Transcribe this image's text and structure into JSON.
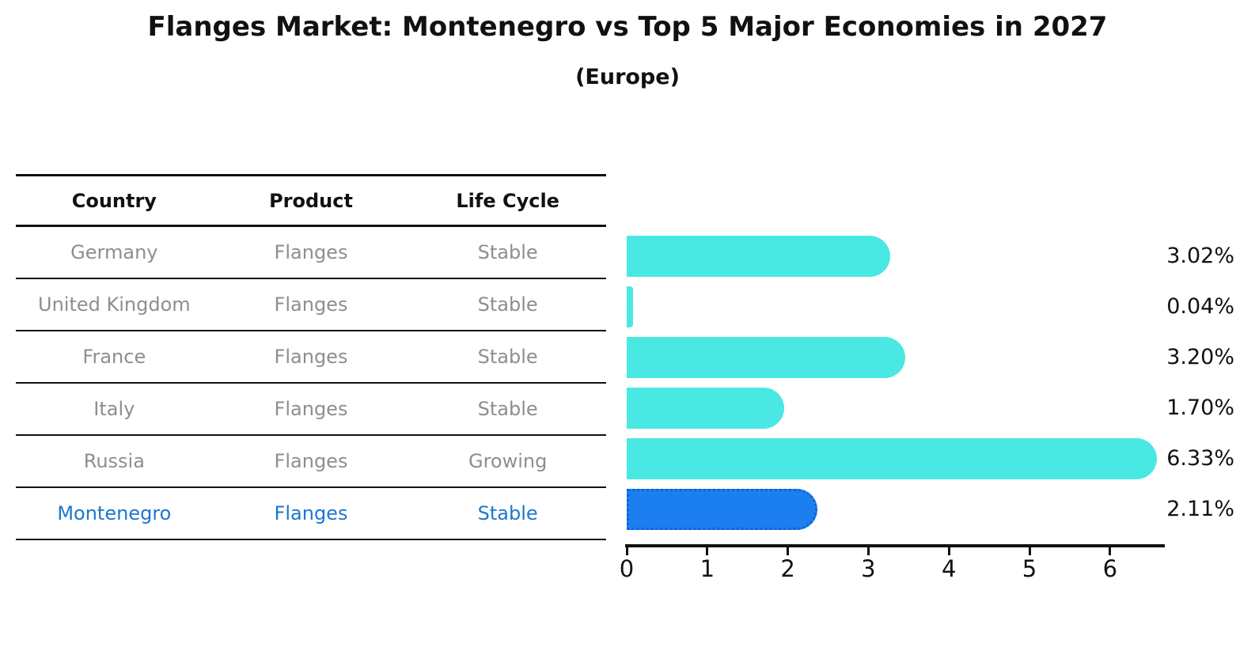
{
  "title": "Flanges Market: Montenegro vs Top 5 Major Economies in 2027",
  "subtitle": "(Europe)",
  "table": {
    "headers": [
      "Country",
      "Product",
      "Life Cycle"
    ],
    "rows": [
      {
        "country": "Germany",
        "product": "Flanges",
        "life_cycle": "Stable",
        "highlight": false
      },
      {
        "country": "United Kingdom",
        "product": "Flanges",
        "life_cycle": "Stable",
        "highlight": false
      },
      {
        "country": "France",
        "product": "Flanges",
        "life_cycle": "Stable",
        "highlight": false
      },
      {
        "country": "Italy",
        "product": "Flanges",
        "life_cycle": "Stable",
        "highlight": false
      },
      {
        "country": "Russia",
        "product": "Flanges",
        "life_cycle": "Growing",
        "highlight": false
      },
      {
        "country": "Montenegro",
        "product": "Flanges",
        "life_cycle": "Stable",
        "highlight": true
      }
    ]
  },
  "chart_data": {
    "type": "bar",
    "orientation": "horizontal",
    "title": "Flanges Market: Montenegro vs Top 5 Major Economies in 2027",
    "subtitle": "(Europe)",
    "categories": [
      "Germany",
      "United Kingdom",
      "France",
      "Italy",
      "Russia",
      "Montenegro"
    ],
    "values": [
      3.02,
      0.04,
      3.2,
      1.7,
      6.33,
      2.11
    ],
    "value_labels": [
      "3.02%",
      "0.04%",
      "3.20%",
      "1.70%",
      "6.33%",
      "2.11%"
    ],
    "x_ticks": [
      0,
      1,
      2,
      3,
      4,
      5,
      6
    ],
    "xlim": [
      0,
      6.68
    ],
    "grid": false,
    "legend": "none",
    "highlight_index": 5,
    "colors": {
      "bar": "#4ae8e2",
      "highlight_bar": "#1b7ff0",
      "highlight_bar_edge": "#0f62d9",
      "highlight_text": "#1b77ce",
      "table_text": "#8e8e8e",
      "axis": "#111111"
    }
  }
}
